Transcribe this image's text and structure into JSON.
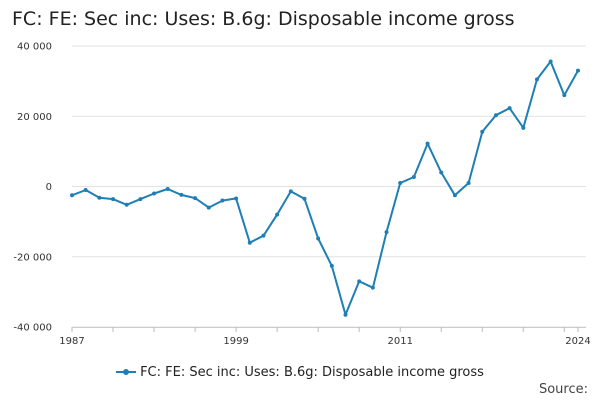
{
  "chart_data": {
    "type": "line",
    "title": "FC: FE: Sec inc: Uses: B.6g: Disposable income gross",
    "xlabel": "",
    "ylabel": "",
    "x": [
      1987,
      1988,
      1989,
      1990,
      1991,
      1992,
      1993,
      1994,
      1995,
      1996,
      1997,
      1998,
      1999,
      2000,
      2001,
      2002,
      2003,
      2004,
      2005,
      2006,
      2007,
      2008,
      2009,
      2010,
      2011,
      2012,
      2013,
      2014,
      2015,
      2016,
      2017,
      2018,
      2019,
      2020,
      2021,
      2022,
      2023,
      2024
    ],
    "series": [
      {
        "name": "FC: FE: Sec inc: Uses: B.6g: Disposable income gross",
        "color": "#1f7fb5",
        "values": [
          -2500,
          -1000,
          -3200,
          -3600,
          -5200,
          -3600,
          -2000,
          -700,
          -2400,
          -3300,
          -6000,
          -4000,
          -3400,
          -16000,
          -14000,
          -8000,
          -1400,
          -3500,
          -14800,
          -22600,
          -36500,
          -27000,
          -28800,
          -13000,
          1000,
          2700,
          12200,
          4000,
          -2500,
          1000,
          15600,
          20300,
          22300,
          16700,
          30500,
          35600,
          26000,
          33000
        ]
      }
    ],
    "ylim": [
      -40000,
      40000
    ],
    "y_ticks": [
      "40 000",
      "20 000",
      "0",
      "-20 000",
      "-40 000"
    ],
    "x_tick_labels": [
      "1987",
      "1999",
      "2011",
      "2024"
    ],
    "grid": true,
    "legend_position": "bottom"
  },
  "legend": {
    "label": "FC: FE: Sec inc: Uses: B.6g: Disposable income gross"
  },
  "footer": {
    "source_label": "Source:"
  }
}
